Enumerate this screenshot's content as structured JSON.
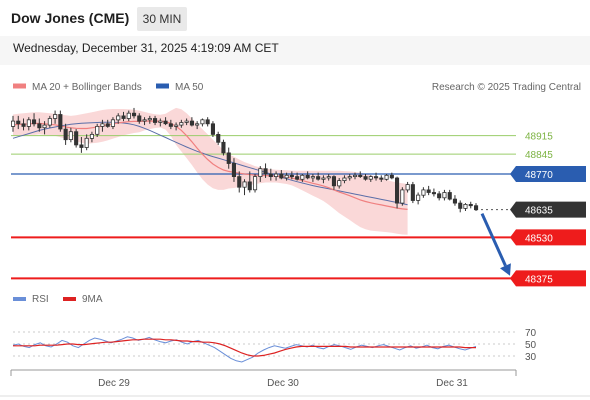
{
  "header": {
    "title": "Dow Jones (CME)",
    "timeframe": "30 MIN",
    "datetime": "Wednesday, December 31, 2025 4:19:09 AM CET"
  },
  "legend": {
    "ma20": "MA 20 + Bollinger Bands",
    "ma50": "MA 50",
    "credit": "Research © 2025 Trading Central"
  },
  "colors": {
    "candle": "#333333",
    "bollinger_fill": "#f8c8c8",
    "ma20": "#f08080",
    "ma50": "#5a6ea8",
    "resistance": "#9acd6a",
    "pivot": "#2a5db0",
    "support": "#ee1c1c",
    "arrow": "#2a5db0",
    "rsi": "#6a8fd8",
    "rsi_ma": "#dd2222"
  },
  "chart_data": [
    {
      "type": "candlestick",
      "x_labels": [
        "Dec 29",
        "Dec 30",
        "Dec 31"
      ],
      "ylim": [
        48350,
        49050
      ],
      "levels": [
        {
          "value": "48915",
          "kind": "resistance"
        },
        {
          "value": "48845",
          "kind": "resistance"
        },
        {
          "value": "48770",
          "kind": "pivot"
        },
        {
          "value": "48635",
          "kind": "last"
        },
        {
          "value": "48530",
          "kind": "support"
        },
        {
          "value": "48375",
          "kind": "support"
        }
      ],
      "arrow": {
        "from": 48635,
        "to": 48385
      },
      "ohlc": [
        [
          48950,
          48990,
          48930,
          48970
        ],
        [
          48970,
          48990,
          48940,
          48960
        ],
        [
          48960,
          48980,
          48935,
          48950
        ],
        [
          48950,
          48985,
          48935,
          48975
        ],
        [
          48975,
          49000,
          48950,
          48960
        ],
        [
          48960,
          48980,
          48930,
          48945
        ],
        [
          48945,
          48970,
          48920,
          48955
        ],
        [
          48955,
          48990,
          48945,
          48980
        ],
        [
          48980,
          49010,
          48960,
          48995
        ],
        [
          48995,
          49010,
          48930,
          48940
        ],
        [
          48940,
          48960,
          48880,
          48900
        ],
        [
          48900,
          48945,
          48890,
          48930
        ],
        [
          48930,
          48940,
          48870,
          48880
        ],
        [
          48880,
          48910,
          48850,
          48870
        ],
        [
          48870,
          48920,
          48860,
          48905
        ],
        [
          48905,
          48930,
          48890,
          48920
        ],
        [
          48920,
          48960,
          48910,
          48950
        ],
        [
          48950,
          48975,
          48930,
          48960
        ],
        [
          48960,
          48975,
          48945,
          48950
        ],
        [
          48950,
          48985,
          48940,
          48975
        ],
        [
          48975,
          49000,
          48960,
          48990
        ],
        [
          48990,
          49005,
          48970,
          48980
        ],
        [
          48980,
          49010,
          48970,
          49000
        ],
        [
          49000,
          49020,
          48980,
          48990
        ],
        [
          48990,
          49000,
          48960,
          48970
        ],
        [
          48970,
          48985,
          48955,
          48975
        ],
        [
          48975,
          48990,
          48960,
          48980
        ],
        [
          48980,
          48990,
          48955,
          48965
        ],
        [
          48965,
          48980,
          48950,
          48970
        ],
        [
          48970,
          48985,
          48955,
          48960
        ],
        [
          48960,
          48975,
          48940,
          48950
        ],
        [
          48950,
          48965,
          48935,
          48955
        ],
        [
          48955,
          48975,
          48945,
          48965
        ],
        [
          48965,
          48980,
          48955,
          48970
        ],
        [
          48970,
          48985,
          48950,
          48955
        ],
        [
          48955,
          48970,
          48940,
          48960
        ],
        [
          48960,
          48980,
          48950,
          48975
        ],
        [
          48975,
          48985,
          48950,
          48960
        ],
        [
          48960,
          48970,
          48910,
          48920
        ],
        [
          48920,
          48930,
          48880,
          48890
        ],
        [
          48890,
          48900,
          48840,
          48850
        ],
        [
          48850,
          48870,
          48790,
          48810
        ],
        [
          48810,
          48830,
          48740,
          48760
        ],
        [
          48760,
          48780,
          48700,
          48720
        ],
        [
          48720,
          48750,
          48690,
          48740
        ],
        [
          48740,
          48780,
          48700,
          48710
        ],
        [
          48710,
          48770,
          48700,
          48760
        ],
        [
          48760,
          48800,
          48740,
          48790
        ],
        [
          48790,
          48810,
          48755,
          48770
        ],
        [
          48770,
          48790,
          48745,
          48760
        ],
        [
          48760,
          48780,
          48745,
          48770
        ],
        [
          48770,
          48785,
          48750,
          48755
        ],
        [
          48755,
          48775,
          48745,
          48765
        ],
        [
          48765,
          48780,
          48750,
          48760
        ],
        [
          48760,
          48775,
          48745,
          48750
        ],
        [
          48750,
          48770,
          48740,
          48765
        ],
        [
          48765,
          48780,
          48750,
          48755
        ],
        [
          48755,
          48770,
          48740,
          48760
        ],
        [
          48760,
          48775,
          48745,
          48750
        ],
        [
          48750,
          48765,
          48735,
          48755
        ],
        [
          48755,
          48770,
          48745,
          48760
        ],
        [
          48760,
          48765,
          48710,
          48725
        ],
        [
          48725,
          48755,
          48715,
          48745
        ],
        [
          48745,
          48765,
          48735,
          48755
        ],
        [
          48755,
          48770,
          48745,
          48760
        ],
        [
          48760,
          48775,
          48750,
          48765
        ],
        [
          48765,
          48780,
          48755,
          48760
        ],
        [
          48760,
          48770,
          48745,
          48750
        ],
        [
          48750,
          48765,
          48740,
          48760
        ],
        [
          48760,
          48775,
          48745,
          48755
        ],
        [
          48755,
          48765,
          48740,
          48750
        ],
        [
          48750,
          48770,
          48745,
          48765
        ],
        [
          48765,
          48775,
          48750,
          48755
        ],
        [
          48755,
          48760,
          48640,
          48660
        ],
        [
          48660,
          48720,
          48650,
          48710
        ],
        [
          48710,
          48740,
          48700,
          48730
        ],
        [
          48730,
          48740,
          48660,
          48670
        ],
        [
          48670,
          48700,
          48655,
          48690
        ],
        [
          48690,
          48720,
          48680,
          48710
        ],
        [
          48710,
          48725,
          48690,
          48700
        ],
        [
          48700,
          48715,
          48685,
          48695
        ],
        [
          48695,
          48705,
          48670,
          48680
        ],
        [
          48680,
          48710,
          48670,
          48700
        ],
        [
          48700,
          48710,
          48670,
          48675
        ],
        [
          48675,
          48690,
          48650,
          48660
        ],
        [
          48660,
          48670,
          48625,
          48640
        ],
        [
          48640,
          48660,
          48630,
          48655
        ],
        [
          48655,
          48665,
          48640,
          48650
        ],
        [
          48650,
          48660,
          48630,
          48635
        ]
      ],
      "ma20": [
        48955,
        48958,
        48958,
        48960,
        48961,
        48962,
        48960,
        48958,
        48956,
        48952,
        48948,
        48945,
        48943,
        48942,
        48942,
        48945,
        48948,
        48952,
        48956,
        48960,
        48963,
        48966,
        48968,
        48969,
        48969,
        48970,
        48970,
        48970,
        48970,
        48968,
        48962,
        48950,
        48935,
        48915,
        48892,
        48868,
        48845,
        48825,
        48808,
        48795,
        48785,
        48780,
        48776,
        48773,
        48770,
        48768,
        48766,
        48765,
        48764,
        48763,
        48762,
        48760,
        48758,
        48755,
        48750,
        48745,
        48740,
        48735,
        48730,
        48725,
        48718,
        48710,
        48702,
        48695,
        48688,
        48680,
        48672,
        48666,
        48661,
        48657,
        48653,
        48649,
        48645,
        48641,
        48638,
        48636
      ],
      "ma50": [
        48905,
        48911,
        48917,
        48923,
        48929,
        48935,
        48940,
        48944,
        48948,
        48952,
        48955,
        48958,
        48960,
        48962,
        48963,
        48964,
        48965,
        48966,
        48966,
        48966,
        48965,
        48963,
        48960,
        48956,
        48950,
        48943,
        48935,
        48926,
        48917,
        48908,
        48899,
        48890,
        48881,
        48872,
        48864,
        48856,
        48849,
        48842,
        48836,
        48830,
        48824,
        48818,
        48812,
        48806,
        48800,
        48794,
        48788,
        48782,
        48776,
        48770,
        48764,
        48758,
        48752,
        48746,
        48741,
        48736,
        48731,
        48726,
        48722,
        48718,
        48714,
        48710,
        48706,
        48702,
        48698,
        48694,
        48690,
        48686,
        48682,
        48678,
        48674,
        48670,
        48666,
        48662,
        48658,
        48654
      ],
      "bb_upper": [
        48995,
        48998,
        49000,
        49002,
        49004,
        49004,
        49002,
        49000,
        48998,
        48995,
        48992,
        48990,
        48992,
        48996,
        49000,
        49004,
        49008,
        49012,
        49015,
        49016,
        49016,
        49016,
        49015,
        49013,
        49010,
        49005,
        49000,
        48996,
        48994,
        48998,
        49010,
        49020,
        49015,
        49000,
        48980,
        48960,
        48940,
        48920,
        48900,
        48880,
        48860,
        48845,
        48835,
        48825,
        48815,
        48808,
        48800,
        48795,
        48790,
        48788,
        48786,
        48785,
        48784,
        48783,
        48782,
        48782,
        48782,
        48782,
        48782,
        48782,
        48782,
        48782,
        48782,
        48781,
        48780,
        48778,
        48775,
        48771,
        48766,
        48760,
        48754,
        48748,
        48742,
        48738,
        48735,
        48732
      ],
      "bb_lower": [
        48915,
        48918,
        48916,
        48918,
        48918,
        48920,
        48918,
        48916,
        48914,
        48909,
        48904,
        48900,
        48894,
        48888,
        48884,
        48886,
        48888,
        48892,
        48897,
        48904,
        48910,
        48916,
        48921,
        48925,
        48928,
        48935,
        48940,
        48944,
        48946,
        48938,
        48914,
        48880,
        48855,
        48830,
        48804,
        48776,
        48750,
        48730,
        48716,
        48710,
        48710,
        48715,
        48717,
        48721,
        48725,
        48728,
        48732,
        48735,
        48738,
        48738,
        48738,
        48735,
        48732,
        48727,
        48718,
        48708,
        48698,
        48688,
        48678,
        48668,
        48654,
        48638,
        48622,
        48609,
        48596,
        48582,
        48569,
        48561,
        48556,
        48554,
        48552,
        48550,
        48548,
        48544,
        48541,
        48540
      ]
    },
    {
      "type": "line",
      "title": "RSI",
      "legend": [
        "RSI",
        "9MA"
      ],
      "yticks": [
        "70",
        "50",
        "30"
      ],
      "ylim": [
        0,
        100
      ],
      "series": [
        {
          "name": "RSI",
          "values": [
            48,
            50,
            46,
            44,
            49,
            52,
            47,
            45,
            50,
            56,
            53,
            47,
            44,
            50,
            56,
            60,
            58,
            55,
            52,
            55,
            58,
            62,
            60,
            56,
            58,
            61,
            57,
            54,
            52,
            55,
            57,
            53,
            50,
            54,
            56,
            52,
            48,
            44,
            38,
            32,
            26,
            22,
            20,
            24,
            28,
            35,
            40,
            44,
            47,
            45,
            43,
            46,
            49,
            47,
            45,
            48,
            44,
            42,
            46,
            49,
            47,
            44,
            41,
            45,
            48,
            46,
            44,
            47,
            49,
            46,
            43,
            40,
            44,
            47,
            43,
            45,
            48,
            44,
            42,
            46,
            48,
            45,
            42,
            40,
            43,
            46
          ]
        },
        {
          "name": "9MA",
          "values": [
            47,
            47,
            47,
            47,
            47,
            48,
            48,
            48,
            48,
            49,
            50,
            50,
            49,
            49,
            50,
            51,
            52,
            53,
            53,
            54,
            55,
            56,
            57,
            57,
            58,
            58,
            58,
            58,
            57,
            57,
            56,
            55,
            55,
            54,
            54,
            53,
            53,
            52,
            50,
            47,
            43,
            39,
            35,
            32,
            30,
            30,
            31,
            33,
            35,
            38,
            41,
            43,
            45,
            46,
            46,
            46,
            46,
            46,
            46,
            46,
            46,
            46,
            45,
            45,
            45,
            45,
            45,
            45,
            45,
            45,
            45,
            45,
            45,
            45,
            45,
            45,
            45,
            45,
            45,
            45,
            45,
            45,
            45,
            44,
            44,
            44
          ]
        }
      ]
    }
  ]
}
